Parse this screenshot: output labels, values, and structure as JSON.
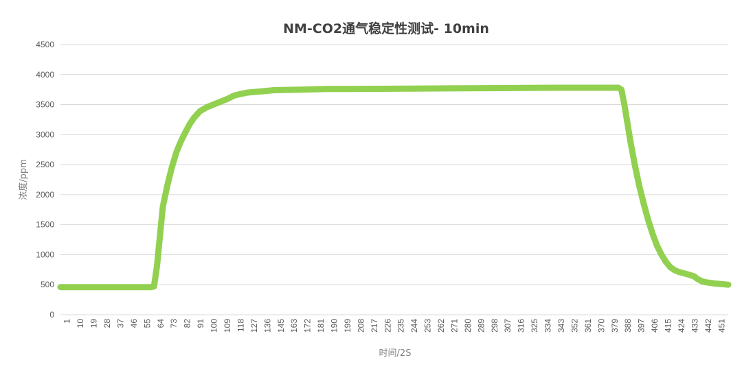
{
  "chart_data": {
    "type": "line",
    "title": "NM-CO2通气稳定性测试- 10min",
    "xlabel": "时间/2S",
    "ylabel": "浓度/ppm",
    "ylim": [
      0,
      4500
    ],
    "yticks": [
      0,
      500,
      1000,
      1500,
      2000,
      2500,
      3000,
      3500,
      4000,
      4500
    ],
    "xlim": [
      1,
      451
    ],
    "xticks": [
      1,
      10,
      19,
      28,
      37,
      46,
      55,
      64,
      73,
      82,
      91,
      100,
      109,
      118,
      127,
      136,
      145,
      163,
      172,
      181,
      190,
      199,
      208,
      217,
      226,
      235,
      244,
      253,
      262,
      271,
      280,
      289,
      298,
      307,
      316,
      325,
      334,
      343,
      352,
      361,
      370,
      379,
      388,
      397,
      406,
      415,
      424,
      433,
      442,
      451
    ],
    "grid": true,
    "legend": "none",
    "series_color": "#92d050",
    "series": [
      {
        "x": [
          1,
          55,
          62,
          64,
          66,
          68,
          70,
          73,
          76,
          79,
          82,
          85,
          88,
          91,
          95,
          100,
          105,
          109,
          114,
          118,
          123,
          127,
          136,
          145,
          163,
          172,
          181,
          190,
          226,
          262,
          298,
          334,
          361,
          370,
          377,
          379,
          381,
          383,
          385,
          388,
          391,
          394,
          397,
          400,
          403,
          406,
          409,
          412,
          415,
          418,
          421,
          424,
          428,
          430,
          433,
          436,
          442,
          451
        ],
        "y": [
          460,
          460,
          460,
          470,
          800,
          1300,
          1800,
          2150,
          2450,
          2700,
          2880,
          3030,
          3170,
          3280,
          3390,
          3460,
          3510,
          3550,
          3600,
          3650,
          3680,
          3700,
          3720,
          3740,
          3750,
          3755,
          3760,
          3760,
          3765,
          3770,
          3775,
          3780,
          3780,
          3780,
          3780,
          3750,
          3500,
          3200,
          2900,
          2500,
          2150,
          1850,
          1580,
          1350,
          1150,
          1000,
          880,
          790,
          740,
          710,
          690,
          670,
          640,
          600,
          560,
          540,
          520,
          500
        ]
      }
    ]
  }
}
